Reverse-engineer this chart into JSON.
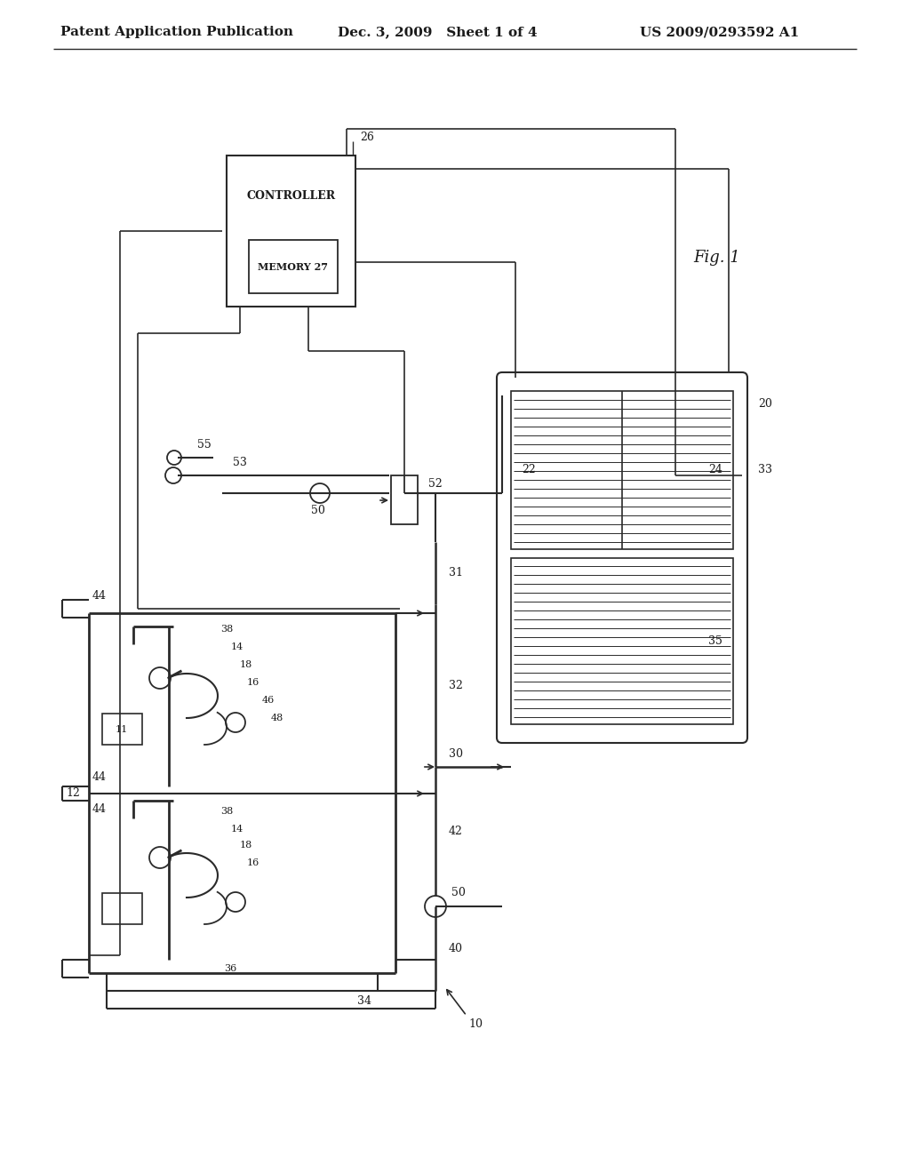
{
  "bg_color": "#ffffff",
  "header_left": "Patent Application Publication",
  "header_mid": "Dec. 3, 2009   Sheet 1 of 4",
  "header_right": "US 2009/0293592 A1",
  "line_color": "#2a2a2a",
  "text_color": "#1a1a1a",
  "header_fontsize": 11,
  "label_fontsize": 9
}
